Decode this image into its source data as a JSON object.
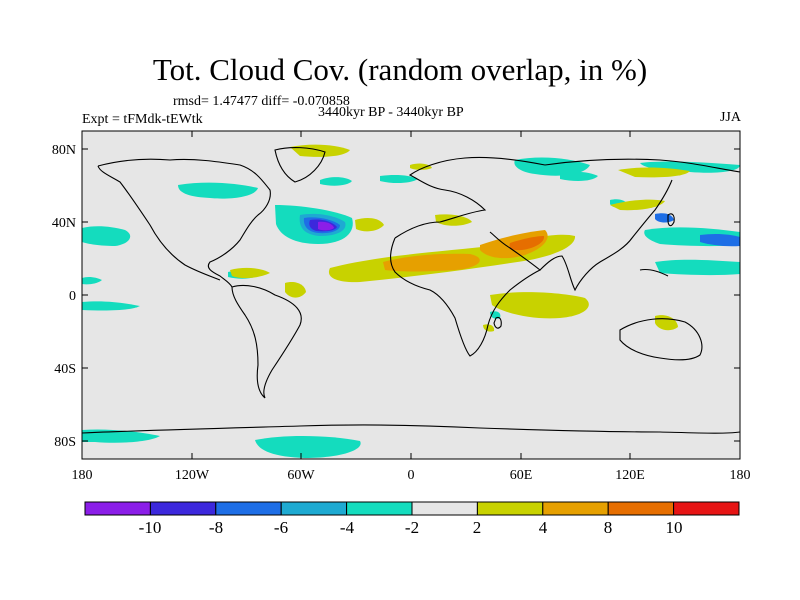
{
  "title": "Tot. Cloud Cov. (random overlap, in %)",
  "stats": "rmsd= 1.47477 diff= -0.070858",
  "period": "3440kyr BP - 3440kyr BP",
  "expt": "Expt = tFMdk-tEWtk",
  "season": "JJA",
  "colors": {
    "ocean_land_background": "#e6e6e6",
    "coastline": "#000000",
    "bins": [
      "#8b1ee8",
      "#3c28dc",
      "#1e6ee6",
      "#1eaad2",
      "#14dcbe",
      "#e6e6e6",
      "#c8d200",
      "#e6a000",
      "#e66e00",
      "#e61414"
    ]
  },
  "map": {
    "lon_ticks": [
      "180",
      "120W",
      "60W",
      "0",
      "60E",
      "120E",
      "180"
    ],
    "lat_ticks": [
      "80N",
      "40N",
      "0",
      "40S",
      "80S"
    ]
  },
  "colorbar": {
    "labels": [
      "-10",
      "-8",
      "-6",
      "-4",
      "-2",
      "2",
      "4",
      "8",
      "10"
    ]
  },
  "anomalies": [
    {
      "region": "North Atlantic",
      "level": -8
    },
    {
      "region": "North Atlantic rim",
      "level": -4
    },
    {
      "region": "Sahara/Sahel band",
      "level": 4
    },
    {
      "region": "Arabian Peninsula",
      "level": 8
    },
    {
      "region": "Indian Ocean",
      "level": 2
    },
    {
      "region": "Southern Ocean",
      "level": -3
    },
    {
      "region": "Western Pacific",
      "level": -3
    }
  ]
}
